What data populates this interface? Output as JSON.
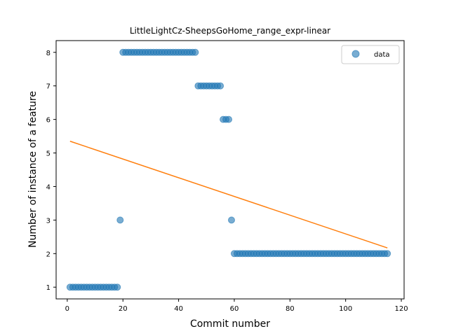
{
  "chart_data": {
    "type": "scatter",
    "title": "LittleLightCz-SheepsGoHome_range_expr-linear",
    "xlabel": "Commit number",
    "ylabel": "Number of instance of a feature",
    "xlim": [
      -4,
      121
    ],
    "ylim": [
      0.65,
      8.35
    ],
    "xticks": [
      0,
      20,
      40,
      60,
      80,
      100,
      120
    ],
    "yticks": [
      1,
      2,
      3,
      4,
      5,
      6,
      7,
      8
    ],
    "grid": false,
    "legend_position": "top-right",
    "colors": {
      "data": "#1f77b4",
      "fit": "#ff7f0e"
    },
    "series": [
      {
        "name": "data",
        "kind": "scatter",
        "points": [
          [
            1,
            1
          ],
          [
            2,
            1
          ],
          [
            3,
            1
          ],
          [
            4,
            1
          ],
          [
            5,
            1
          ],
          [
            6,
            1
          ],
          [
            7,
            1
          ],
          [
            8,
            1
          ],
          [
            9,
            1
          ],
          [
            10,
            1
          ],
          [
            11,
            1
          ],
          [
            12,
            1
          ],
          [
            13,
            1
          ],
          [
            14,
            1
          ],
          [
            15,
            1
          ],
          [
            16,
            1
          ],
          [
            17,
            1
          ],
          [
            18,
            1
          ],
          [
            19,
            3
          ],
          [
            20,
            8
          ],
          [
            21,
            8
          ],
          [
            22,
            8
          ],
          [
            23,
            8
          ],
          [
            24,
            8
          ],
          [
            25,
            8
          ],
          [
            26,
            8
          ],
          [
            27,
            8
          ],
          [
            28,
            8
          ],
          [
            29,
            8
          ],
          [
            30,
            8
          ],
          [
            31,
            8
          ],
          [
            32,
            8
          ],
          [
            33,
            8
          ],
          [
            34,
            8
          ],
          [
            35,
            8
          ],
          [
            36,
            8
          ],
          [
            37,
            8
          ],
          [
            38,
            8
          ],
          [
            39,
            8
          ],
          [
            40,
            8
          ],
          [
            41,
            8
          ],
          [
            42,
            8
          ],
          [
            43,
            8
          ],
          [
            44,
            8
          ],
          [
            45,
            8
          ],
          [
            46,
            8
          ],
          [
            47,
            7
          ],
          [
            48,
            7
          ],
          [
            49,
            7
          ],
          [
            50,
            7
          ],
          [
            51,
            7
          ],
          [
            52,
            7
          ],
          [
            53,
            7
          ],
          [
            54,
            7
          ],
          [
            55,
            7
          ],
          [
            56,
            6
          ],
          [
            57,
            6
          ],
          [
            58,
            6
          ],
          [
            59,
            3
          ],
          [
            60,
            2
          ],
          [
            61,
            2
          ],
          [
            62,
            2
          ],
          [
            63,
            2
          ],
          [
            64,
            2
          ],
          [
            65,
            2
          ],
          [
            66,
            2
          ],
          [
            67,
            2
          ],
          [
            68,
            2
          ],
          [
            69,
            2
          ],
          [
            70,
            2
          ],
          [
            71,
            2
          ],
          [
            72,
            2
          ],
          [
            73,
            2
          ],
          [
            74,
            2
          ],
          [
            75,
            2
          ],
          [
            76,
            2
          ],
          [
            77,
            2
          ],
          [
            78,
            2
          ],
          [
            79,
            2
          ],
          [
            80,
            2
          ],
          [
            81,
            2
          ],
          [
            82,
            2
          ],
          [
            83,
            2
          ],
          [
            84,
            2
          ],
          [
            85,
            2
          ],
          [
            86,
            2
          ],
          [
            87,
            2
          ],
          [
            88,
            2
          ],
          [
            89,
            2
          ],
          [
            90,
            2
          ],
          [
            91,
            2
          ],
          [
            92,
            2
          ],
          [
            93,
            2
          ],
          [
            94,
            2
          ],
          [
            95,
            2
          ],
          [
            96,
            2
          ],
          [
            97,
            2
          ],
          [
            98,
            2
          ],
          [
            99,
            2
          ],
          [
            100,
            2
          ],
          [
            101,
            2
          ],
          [
            102,
            2
          ],
          [
            103,
            2
          ],
          [
            104,
            2
          ],
          [
            105,
            2
          ],
          [
            106,
            2
          ],
          [
            107,
            2
          ],
          [
            108,
            2
          ],
          [
            109,
            2
          ],
          [
            110,
            2
          ],
          [
            111,
            2
          ],
          [
            112,
            2
          ],
          [
            113,
            2
          ],
          [
            114,
            2
          ],
          [
            115,
            2
          ]
        ]
      },
      {
        "kind": "line",
        "points": [
          [
            1,
            5.35
          ],
          [
            115,
            2.17
          ]
        ]
      }
    ]
  }
}
